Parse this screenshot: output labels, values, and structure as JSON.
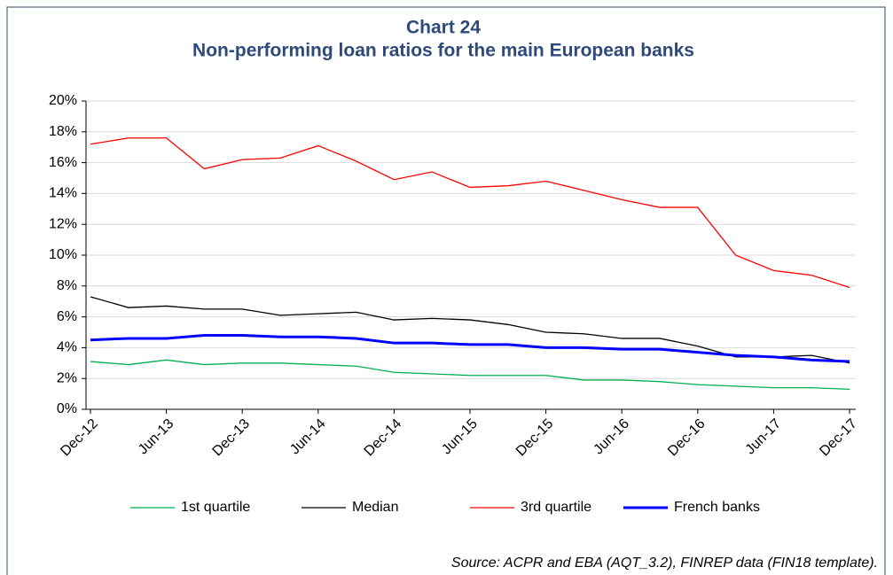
{
  "chart_data": {
    "type": "line",
    "title": "Chart 24",
    "subtitle": "Non-performing loan ratios for the main European banks",
    "source": "Source: ACPR and EBA (AQT_3.2), FINREP data (FIN18 template).",
    "categories": [
      "Dec-12",
      null,
      "Jun-13",
      null,
      "Dec-13",
      null,
      "Jun-14",
      null,
      "Dec-14",
      null,
      "Jun-15",
      null,
      "Dec-15",
      null,
      "Jun-16",
      null,
      "Dec-16",
      null,
      "Jun-17",
      null,
      "Dec-17"
    ],
    "series": [
      {
        "name": "1st quartile",
        "color": "#00b050",
        "width": 1.3,
        "values": [
          3.1,
          2.9,
          3.2,
          2.9,
          3.0,
          3.0,
          2.9,
          2.8,
          2.4,
          2.3,
          2.2,
          2.2,
          2.2,
          1.9,
          1.9,
          1.8,
          1.6,
          1.5,
          1.4,
          1.4,
          1.3
        ]
      },
      {
        "name": "Median",
        "color": "#000000",
        "width": 1.3,
        "values": [
          7.3,
          6.6,
          6.7,
          6.5,
          6.5,
          6.1,
          6.2,
          6.3,
          5.8,
          5.9,
          5.8,
          5.5,
          5.0,
          4.9,
          4.6,
          4.6,
          4.1,
          3.4,
          3.4,
          3.5,
          3.0
        ]
      },
      {
        "name": "3rd quartile",
        "color": "#ff0000",
        "width": 1.3,
        "values": [
          17.2,
          17.6,
          17.6,
          15.6,
          16.2,
          16.3,
          17.1,
          16.1,
          14.9,
          15.4,
          14.4,
          14.5,
          14.8,
          14.2,
          13.6,
          13.1,
          13.1,
          10.0,
          9.0,
          8.7,
          7.9
        ]
      },
      {
        "name": "French banks",
        "color": "#0000ff",
        "width": 3,
        "values": [
          4.5,
          4.6,
          4.6,
          4.8,
          4.8,
          4.7,
          4.7,
          4.6,
          4.3,
          4.3,
          4.2,
          4.2,
          4.0,
          4.0,
          3.9,
          3.9,
          3.7,
          3.5,
          3.4,
          3.2,
          3.1
        ]
      }
    ],
    "ylim": [
      0,
      20
    ],
    "yticks": [
      {
        "value": 0,
        "label": "0%"
      },
      {
        "value": 2,
        "label": "2%"
      },
      {
        "value": 4,
        "label": "4%"
      },
      {
        "value": 6,
        "label": "6%"
      },
      {
        "value": 8,
        "label": "8%"
      },
      {
        "value": 10,
        "label": "10%"
      },
      {
        "value": 12,
        "label": "12%"
      },
      {
        "value": 14,
        "label": "14%"
      },
      {
        "value": 16,
        "label": "16%"
      },
      {
        "value": 18,
        "label": "18%"
      },
      {
        "value": 20,
        "label": "20%"
      }
    ],
    "grid": true,
    "legend": "bottom"
  }
}
